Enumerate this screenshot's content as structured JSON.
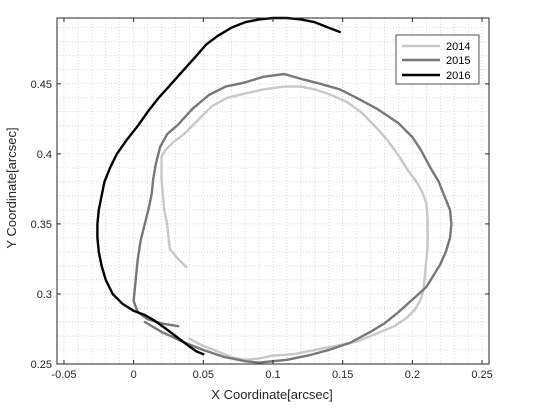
{
  "chart_data": {
    "type": "line",
    "xlabel": "X Coordinate[arcsec]",
    "ylabel": "Y Coordinate[arcsec]",
    "xlim": [
      -0.055,
      0.255
    ],
    "ylim": [
      0.25,
      0.497
    ],
    "xticks": [
      -0.05,
      0,
      0.05,
      0.1,
      0.15,
      0.2,
      0.25
    ],
    "xtick_labels": [
      "-0.05",
      "0",
      "0.05",
      "0.1",
      "0.15",
      "0.2",
      "0.25"
    ],
    "yticks": [
      0.25,
      0.3,
      0.35,
      0.4,
      0.45
    ],
    "ytick_labels": [
      "0.25",
      "0.3",
      "0.35",
      "0.4",
      "0.45"
    ],
    "grid": "dotted, major and minor",
    "legend_position": "top-right",
    "series": [
      {
        "name": "2014",
        "color": "#c8c8c8",
        "x": [
          0.038,
          0.035,
          0.031,
          0.026,
          0.025,
          0.024,
          0.022,
          0.021,
          0.02,
          0.02,
          0.02,
          0.023,
          0.028,
          0.036,
          0.046,
          0.056,
          0.067,
          0.08,
          0.093,
          0.108,
          0.12,
          0.13,
          0.142,
          0.153,
          0.163,
          0.173,
          0.182,
          0.19,
          0.197,
          0.203,
          0.207,
          0.21,
          0.211,
          0.211,
          0.21,
          0.209,
          0.208,
          0.206,
          0.202,
          0.196,
          0.187,
          0.175,
          0.16,
          0.145,
          0.13,
          0.115,
          0.1,
          0.09,
          0.08,
          0.07,
          0.06,
          0.05,
          0.04
        ],
        "y": [
          0.319,
          0.322,
          0.326,
          0.332,
          0.34,
          0.35,
          0.36,
          0.37,
          0.382,
          0.392,
          0.398,
          0.403,
          0.408,
          0.414,
          0.424,
          0.434,
          0.44,
          0.443,
          0.446,
          0.448,
          0.448,
          0.446,
          0.442,
          0.437,
          0.43,
          0.42,
          0.41,
          0.399,
          0.388,
          0.38,
          0.373,
          0.365,
          0.352,
          0.335,
          0.324,
          0.313,
          0.303,
          0.296,
          0.289,
          0.283,
          0.277,
          0.272,
          0.266,
          0.263,
          0.26,
          0.257,
          0.256,
          0.254,
          0.253,
          0.255,
          0.259,
          0.263,
          0.268
        ]
      },
      {
        "name": "2015",
        "color": "#777777",
        "x": [
          0.032,
          0.02,
          0.01,
          0.003,
          0.0,
          0.001,
          0.002,
          0.003,
          0.005,
          0.008,
          0.011,
          0.013,
          0.014,
          0.016,
          0.019,
          0.024,
          0.032,
          0.042,
          0.054,
          0.066,
          0.08,
          0.093,
          0.108,
          0.122,
          0.134,
          0.148,
          0.16,
          0.175,
          0.19,
          0.2,
          0.206,
          0.213,
          0.219,
          0.223,
          0.227,
          0.228,
          0.227,
          0.224,
          0.22,
          0.215,
          0.21,
          0.2,
          0.19,
          0.18,
          0.17,
          0.155,
          0.14,
          0.125,
          0.11,
          0.1,
          0.09,
          0.08,
          0.065,
          0.05,
          0.035,
          0.02,
          0.008
        ],
        "y": [
          0.277,
          0.279,
          0.282,
          0.287,
          0.295,
          0.305,
          0.315,
          0.325,
          0.338,
          0.35,
          0.362,
          0.372,
          0.382,
          0.393,
          0.405,
          0.414,
          0.421,
          0.432,
          0.442,
          0.448,
          0.451,
          0.455,
          0.457,
          0.453,
          0.45,
          0.446,
          0.44,
          0.432,
          0.422,
          0.412,
          0.403,
          0.39,
          0.38,
          0.37,
          0.36,
          0.35,
          0.34,
          0.33,
          0.321,
          0.313,
          0.305,
          0.296,
          0.287,
          0.279,
          0.273,
          0.265,
          0.26,
          0.256,
          0.253,
          0.252,
          0.251,
          0.252,
          0.255,
          0.26,
          0.266,
          0.273,
          0.28
        ]
      },
      {
        "name": "2016",
        "color": "#000000",
        "x": [
          0.148,
          0.14,
          0.13,
          0.12,
          0.11,
          0.1,
          0.09,
          0.08,
          0.07,
          0.06,
          0.052,
          0.045,
          0.036,
          0.027,
          0.018,
          0.01,
          0.003,
          -0.005,
          -0.012,
          -0.017,
          -0.021,
          -0.023,
          -0.025,
          -0.026,
          -0.026,
          -0.025,
          -0.023,
          -0.02,
          -0.015,
          -0.008,
          0.0,
          0.008,
          0.015,
          0.022,
          0.03,
          0.038,
          0.045,
          0.05
        ],
        "y": [
          0.487,
          0.49,
          0.494,
          0.496,
          0.497,
          0.497,
          0.496,
          0.494,
          0.49,
          0.484,
          0.478,
          0.47,
          0.46,
          0.45,
          0.44,
          0.43,
          0.42,
          0.41,
          0.4,
          0.39,
          0.38,
          0.37,
          0.36,
          0.35,
          0.34,
          0.33,
          0.32,
          0.31,
          0.3,
          0.293,
          0.288,
          0.285,
          0.281,
          0.276,
          0.27,
          0.264,
          0.259,
          0.257
        ]
      }
    ]
  }
}
